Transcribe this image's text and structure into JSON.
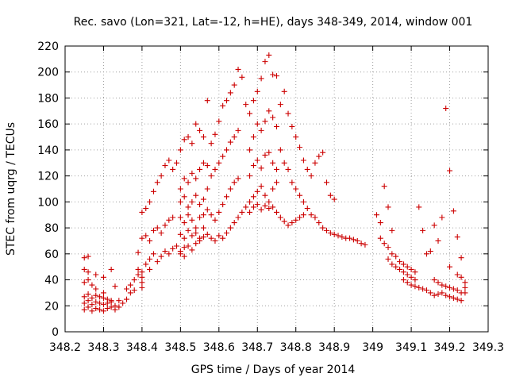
{
  "chart_data": {
    "type": "scatter",
    "title": "Rec. savo (Lon=321, Lat=-12, h=HE), days 348-349, 2014, window 001",
    "xlabel": "GPS time / Days of year 2014",
    "ylabel": "STEC from uqrg / TECUs",
    "xlim": [
      348.2,
      349.3
    ],
    "ylim": [
      0,
      220
    ],
    "xticks": [
      "348.2",
      "348.3",
      "348.4",
      "348.5",
      "348.6",
      "348.7",
      "348.8",
      "348.9",
      "349",
      "349.1",
      "349.2",
      "349.3"
    ],
    "yticks": [
      "0",
      "20",
      "40",
      "60",
      "80",
      "100",
      "120",
      "140",
      "160",
      "180",
      "200",
      "220"
    ],
    "grid": true,
    "marker": "plus",
    "color": "#cc0000",
    "points": [
      [
        348.25,
        17
      ],
      [
        348.26,
        19
      ],
      [
        348.27,
        16
      ],
      [
        348.28,
        18
      ],
      [
        348.29,
        17
      ],
      [
        348.3,
        16
      ],
      [
        348.31,
        18
      ],
      [
        348.32,
        19
      ],
      [
        348.33,
        17
      ],
      [
        348.34,
        19
      ],
      [
        348.25,
        22
      ],
      [
        348.26,
        24
      ],
      [
        348.27,
        21
      ],
      [
        348.28,
        23
      ],
      [
        348.29,
        22
      ],
      [
        348.3,
        21
      ],
      [
        348.31,
        22
      ],
      [
        348.32,
        23
      ],
      [
        348.33,
        20
      ],
      [
        348.34,
        24
      ],
      [
        348.25,
        27
      ],
      [
        348.26,
        29
      ],
      [
        348.27,
        26
      ],
      [
        348.28,
        28
      ],
      [
        348.29,
        27
      ],
      [
        348.3,
        26
      ],
      [
        348.31,
        25
      ],
      [
        348.32,
        24
      ],
      [
        348.25,
        38
      ],
      [
        348.26,
        40
      ],
      [
        348.27,
        36
      ],
      [
        348.25,
        48
      ],
      [
        348.26,
        46
      ],
      [
        348.25,
        57
      ],
      [
        348.26,
        58
      ],
      [
        348.28,
        44
      ],
      [
        348.3,
        42
      ],
      [
        348.32,
        48
      ],
      [
        348.28,
        33
      ],
      [
        348.3,
        30
      ],
      [
        348.33,
        35
      ],
      [
        348.35,
        22
      ],
      [
        348.36,
        25
      ],
      [
        348.37,
        30
      ],
      [
        348.38,
        32
      ],
      [
        348.36,
        33
      ],
      [
        348.37,
        36
      ],
      [
        348.38,
        40
      ],
      [
        348.39,
        44
      ],
      [
        348.39,
        48
      ],
      [
        348.4,
        34
      ],
      [
        348.4,
        38
      ],
      [
        348.4,
        42
      ],
      [
        348.4,
        46
      ],
      [
        348.41,
        52
      ],
      [
        348.42,
        48
      ],
      [
        348.42,
        56
      ],
      [
        348.43,
        60
      ],
      [
        348.44,
        54
      ],
      [
        348.45,
        58
      ],
      [
        348.46,
        62
      ],
      [
        348.47,
        60
      ],
      [
        348.48,
        64
      ],
      [
        348.49,
        66
      ],
      [
        348.5,
        60
      ],
      [
        348.51,
        65
      ],
      [
        348.39,
        61
      ],
      [
        348.4,
        72
      ],
      [
        348.41,
        74
      ],
      [
        348.42,
        70
      ],
      [
        348.43,
        78
      ],
      [
        348.44,
        80
      ],
      [
        348.45,
        76
      ],
      [
        348.46,
        82
      ],
      [
        348.47,
        86
      ],
      [
        348.48,
        88
      ],
      [
        348.4,
        92
      ],
      [
        348.41,
        95
      ],
      [
        348.42,
        100
      ],
      [
        348.43,
        108
      ],
      [
        348.44,
        115
      ],
      [
        348.45,
        120
      ],
      [
        348.46,
        128
      ],
      [
        348.47,
        132
      ],
      [
        348.48,
        125
      ],
      [
        348.49,
        130
      ],
      [
        348.5,
        140
      ],
      [
        348.51,
        148
      ],
      [
        348.52,
        150
      ],
      [
        348.53,
        145
      ],
      [
        348.54,
        160
      ],
      [
        348.55,
        155
      ],
      [
        348.56,
        150
      ],
      [
        348.57,
        178
      ],
      [
        348.5,
        110
      ],
      [
        348.51,
        118
      ],
      [
        348.52,
        115
      ],
      [
        348.53,
        122
      ],
      [
        348.54,
        118
      ],
      [
        348.55,
        125
      ],
      [
        348.56,
        130
      ],
      [
        348.57,
        128
      ],
      [
        348.5,
        100
      ],
      [
        348.51,
        104
      ],
      [
        348.52,
        96
      ],
      [
        348.53,
        100
      ],
      [
        348.54,
        105
      ],
      [
        348.55,
        98
      ],
      [
        348.56,
        102
      ],
      [
        348.57,
        110
      ],
      [
        348.5,
        88
      ],
      [
        348.51,
        84
      ],
      [
        348.52,
        90
      ],
      [
        348.53,
        86
      ],
      [
        348.54,
        80
      ],
      [
        348.55,
        88
      ],
      [
        348.56,
        90
      ],
      [
        348.57,
        94
      ],
      [
        348.5,
        75
      ],
      [
        348.51,
        72
      ],
      [
        348.52,
        78
      ],
      [
        348.53,
        74
      ],
      [
        348.54,
        76
      ],
      [
        348.55,
        72
      ],
      [
        348.56,
        80
      ],
      [
        348.57,
        75
      ],
      [
        348.5,
        62
      ],
      [
        348.51,
        58
      ],
      [
        348.52,
        66
      ],
      [
        348.53,
        63
      ],
      [
        348.54,
        68
      ],
      [
        348.55,
        70
      ],
      [
        348.56,
        73
      ],
      [
        348.58,
        72
      ],
      [
        348.59,
        70
      ],
      [
        348.6,
        74
      ],
      [
        348.61,
        72
      ],
      [
        348.62,
        76
      ],
      [
        348.63,
        80
      ],
      [
        348.64,
        84
      ],
      [
        348.65,
        88
      ],
      [
        348.66,
        92
      ],
      [
        348.67,
        96
      ],
      [
        348.58,
        90
      ],
      [
        348.59,
        86
      ],
      [
        348.6,
        92
      ],
      [
        348.61,
        98
      ],
      [
        348.62,
        104
      ],
      [
        348.63,
        110
      ],
      [
        348.64,
        115
      ],
      [
        348.65,
        118
      ],
      [
        348.58,
        120
      ],
      [
        348.59,
        125
      ],
      [
        348.6,
        130
      ],
      [
        348.61,
        135
      ],
      [
        348.62,
        140
      ],
      [
        348.63,
        146
      ],
      [
        348.64,
        150
      ],
      [
        348.65,
        155
      ],
      [
        348.58,
        145
      ],
      [
        348.59,
        152
      ],
      [
        348.6,
        162
      ],
      [
        348.61,
        174
      ],
      [
        348.62,
        178
      ],
      [
        348.63,
        184
      ],
      [
        348.64,
        190
      ],
      [
        348.65,
        202
      ],
      [
        348.66,
        196
      ],
      [
        348.67,
        175
      ],
      [
        348.68,
        168
      ],
      [
        348.69,
        178
      ],
      [
        348.7,
        185
      ],
      [
        348.71,
        195
      ],
      [
        348.72,
        208
      ],
      [
        348.73,
        213
      ],
      [
        348.74,
        198
      ],
      [
        348.75,
        197
      ],
      [
        348.68,
        140
      ],
      [
        348.69,
        150
      ],
      [
        348.7,
        160
      ],
      [
        348.71,
        155
      ],
      [
        348.72,
        162
      ],
      [
        348.73,
        170
      ],
      [
        348.74,
        165
      ],
      [
        348.75,
        158
      ],
      [
        348.68,
        120
      ],
      [
        348.69,
        128
      ],
      [
        348.7,
        132
      ],
      [
        348.71,
        126
      ],
      [
        348.72,
        136
      ],
      [
        348.73,
        138
      ],
      [
        348.74,
        130
      ],
      [
        348.75,
        125
      ],
      [
        348.68,
        100
      ],
      [
        348.69,
        104
      ],
      [
        348.7,
        108
      ],
      [
        348.71,
        112
      ],
      [
        348.72,
        105
      ],
      [
        348.73,
        100
      ],
      [
        348.74,
        110
      ],
      [
        348.75,
        115
      ],
      [
        348.68,
        92
      ],
      [
        348.69,
        96
      ],
      [
        348.7,
        98
      ],
      [
        348.71,
        94
      ],
      [
        348.72,
        97
      ],
      [
        348.73,
        95
      ],
      [
        348.74,
        96
      ],
      [
        348.75,
        92
      ],
      [
        348.76,
        88
      ],
      [
        348.77,
        85
      ],
      [
        348.78,
        82
      ],
      [
        348.79,
        84
      ],
      [
        348.8,
        86
      ],
      [
        348.81,
        88
      ],
      [
        348.82,
        90
      ],
      [
        348.76,
        175
      ],
      [
        348.77,
        185
      ],
      [
        348.78,
        168
      ],
      [
        348.79,
        158
      ],
      [
        348.8,
        150
      ],
      [
        348.81,
        142
      ],
      [
        348.82,
        132
      ],
      [
        348.76,
        140
      ],
      [
        348.77,
        130
      ],
      [
        348.78,
        125
      ],
      [
        348.79,
        115
      ],
      [
        348.8,
        110
      ],
      [
        348.81,
        105
      ],
      [
        348.82,
        100
      ],
      [
        348.83,
        95
      ],
      [
        348.84,
        90
      ],
      [
        348.85,
        88
      ],
      [
        348.86,
        84
      ],
      [
        348.87,
        80
      ],
      [
        348.88,
        78
      ],
      [
        348.89,
        76
      ],
      [
        348.9,
        75
      ],
      [
        348.83,
        125
      ],
      [
        348.84,
        120
      ],
      [
        348.85,
        130
      ],
      [
        348.86,
        135
      ],
      [
        348.87,
        138
      ],
      [
        348.88,
        115
      ],
      [
        348.89,
        105
      ],
      [
        348.9,
        102
      ],
      [
        348.91,
        74
      ],
      [
        348.92,
        73
      ],
      [
        348.93,
        72
      ],
      [
        348.94,
        72
      ],
      [
        348.95,
        71
      ],
      [
        348.96,
        70
      ],
      [
        348.97,
        68
      ],
      [
        348.98,
        67
      ],
      [
        349.01,
        90
      ],
      [
        349.02,
        84
      ],
      [
        349.03,
        112
      ],
      [
        349.04,
        96
      ],
      [
        349.05,
        78
      ],
      [
        349.02,
        72
      ],
      [
        349.03,
        68
      ],
      [
        349.04,
        65
      ],
      [
        349.04,
        56
      ],
      [
        349.05,
        52
      ],
      [
        349.06,
        50
      ],
      [
        349.07,
        48
      ],
      [
        349.08,
        46
      ],
      [
        349.09,
        44
      ],
      [
        349.1,
        42
      ],
      [
        349.11,
        40
      ],
      [
        349.05,
        60
      ],
      [
        349.06,
        58
      ],
      [
        349.07,
        54
      ],
      [
        349.08,
        52
      ],
      [
        349.09,
        50
      ],
      [
        349.1,
        48
      ],
      [
        349.11,
        46
      ],
      [
        349.08,
        40
      ],
      [
        349.09,
        38
      ],
      [
        349.1,
        36
      ],
      [
        349.11,
        35
      ],
      [
        349.12,
        34
      ],
      [
        349.13,
        33
      ],
      [
        349.14,
        32
      ],
      [
        349.15,
        30
      ],
      [
        349.12,
        96
      ],
      [
        349.13,
        78
      ],
      [
        349.14,
        60
      ],
      [
        349.15,
        62
      ],
      [
        349.16,
        82
      ],
      [
        349.17,
        70
      ],
      [
        349.18,
        88
      ],
      [
        349.19,
        172
      ],
      [
        349.2,
        124
      ],
      [
        349.16,
        40
      ],
      [
        349.17,
        38
      ],
      [
        349.18,
        36
      ],
      [
        349.19,
        35
      ],
      [
        349.2,
        34
      ],
      [
        349.21,
        33
      ],
      [
        349.22,
        32
      ],
      [
        349.23,
        30
      ],
      [
        349.16,
        28
      ],
      [
        349.17,
        29
      ],
      [
        349.18,
        30
      ],
      [
        349.19,
        28
      ],
      [
        349.2,
        27
      ],
      [
        349.21,
        26
      ],
      [
        349.22,
        25
      ],
      [
        349.23,
        24
      ],
      [
        349.2,
        50
      ],
      [
        349.21,
        93
      ],
      [
        349.22,
        73
      ],
      [
        349.23,
        57
      ],
      [
        349.22,
        44
      ],
      [
        349.23,
        42
      ],
      [
        349.24,
        38
      ],
      [
        349.24,
        34
      ],
      [
        349.24,
        30
      ]
    ]
  }
}
